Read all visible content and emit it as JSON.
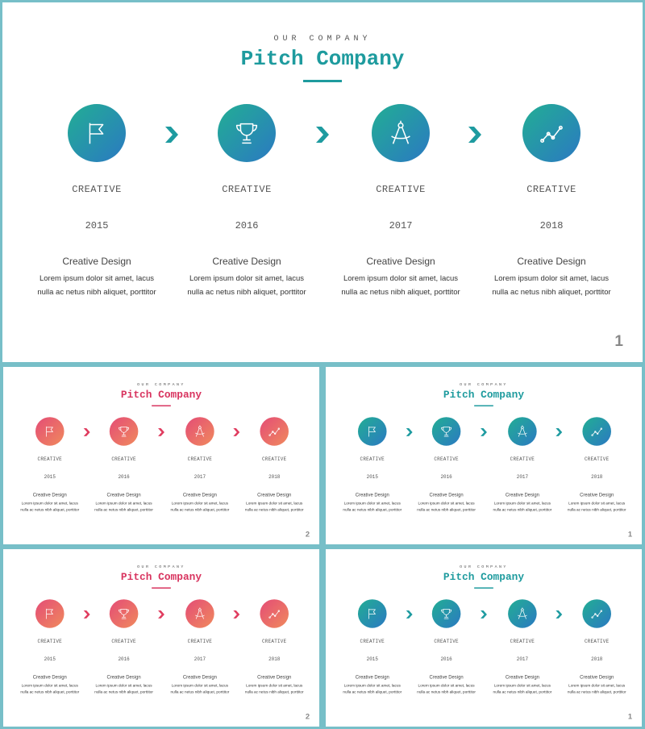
{
  "slides": [
    {
      "variant": "teal",
      "kicker": "OUR COMPANY",
      "title": "Pitch Company",
      "page_number": "1"
    },
    {
      "variant": "pink",
      "kicker": "OUR COMPANY",
      "title": "Pitch Company",
      "page_number": "2"
    },
    {
      "variant": "teal",
      "kicker": "OUR COMPANY",
      "title": "Pitch Company",
      "page_number": "1"
    },
    {
      "variant": "pink",
      "kicker": "OUR COMPANY",
      "title": "Pitch Company",
      "page_number": "2"
    },
    {
      "variant": "teal",
      "kicker": "OUR COMPANY",
      "title": "Pitch Company",
      "page_number": "1"
    }
  ],
  "timeline": [
    {
      "icon": "flag-icon",
      "label": "CREATIVE",
      "year": "2015",
      "heading": "Creative Design",
      "text": "Lorem ipsum dolor sit amet, lacus nulla ac netus nibh aliquet, porttitor"
    },
    {
      "icon": "trophy-icon",
      "label": "CREATIVE",
      "year": "2016",
      "heading": "Creative Design",
      "text": "Lorem ipsum dolor sit amet, lacus nulla ac netus nibh aliquet, porttitor"
    },
    {
      "icon": "compass-icon",
      "label": "CREATIVE",
      "year": "2017",
      "heading": "Creative Design",
      "text": "Lorem ipsum dolor sit amet, lacus nulla ac netus nibh aliquet, porttitor"
    },
    {
      "icon": "line-chart-icon",
      "label": "CREATIVE",
      "year": "2018",
      "heading": "Creative Design",
      "text": "Lorem ipsum dolor sit amet, lacus nulla ac netus nibh aliquet, porttitor"
    }
  ],
  "colors": {
    "teal_start": "#22ae94",
    "teal_end": "#2b79c2",
    "teal_title": "#1e9b9e",
    "pink_start": "#e44c76",
    "pink_end": "#f08a5d",
    "pink_title": "#d8345f",
    "frame": "#77bfc8"
  }
}
